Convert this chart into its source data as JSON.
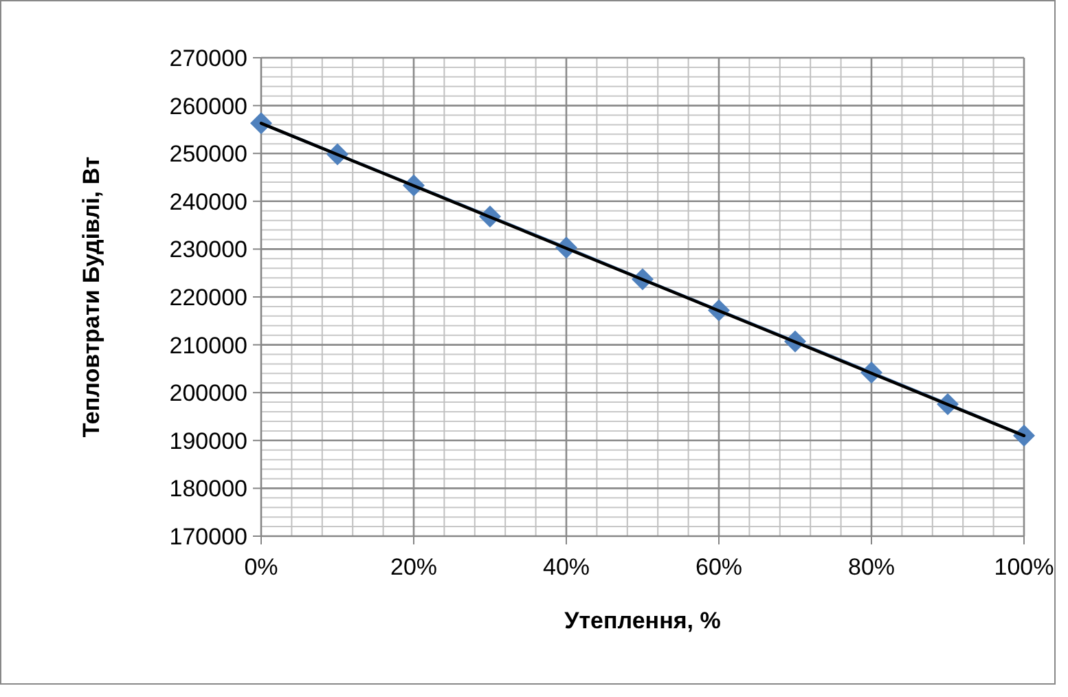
{
  "chart_data": {
    "type": "line",
    "xlabel": "Утеплення, %",
    "ylabel": "Тепловтрати Будівлі, Вт",
    "xlim": [
      0,
      100
    ],
    "ylim": [
      170000,
      270000
    ],
    "xticks": [
      {
        "value": 0,
        "label": "0%"
      },
      {
        "value": 4,
        "label": null
      },
      {
        "value": 8,
        "label": null
      },
      {
        "value": 12,
        "label": null
      },
      {
        "value": 16,
        "label": null
      },
      {
        "value": 20,
        "label": "20%"
      },
      {
        "value": 24,
        "label": null
      },
      {
        "value": 28,
        "label": null
      },
      {
        "value": 32,
        "label": null
      },
      {
        "value": 36,
        "label": null
      },
      {
        "value": 40,
        "label": "40%"
      },
      {
        "value": 44,
        "label": null
      },
      {
        "value": 48,
        "label": null
      },
      {
        "value": 52,
        "label": null
      },
      {
        "value": 56,
        "label": null
      },
      {
        "value": 60,
        "label": "60%"
      },
      {
        "value": 64,
        "label": null
      },
      {
        "value": 68,
        "label": null
      },
      {
        "value": 72,
        "label": null
      },
      {
        "value": 76,
        "label": null
      },
      {
        "value": 80,
        "label": "80%"
      },
      {
        "value": 84,
        "label": null
      },
      {
        "value": 88,
        "label": null
      },
      {
        "value": 92,
        "label": null
      },
      {
        "value": 96,
        "label": null
      },
      {
        "value": 100,
        "label": "100%"
      }
    ],
    "yticks": [
      170000,
      180000,
      190000,
      200000,
      210000,
      220000,
      230000,
      240000,
      250000,
      260000,
      270000
    ],
    "grid": true,
    "series": [
      {
        "color": "#4f81bd",
        "marker": "diamond",
        "line_style": "solid",
        "x": [
          0,
          10,
          20,
          30,
          40,
          50,
          60,
          70,
          80,
          90,
          100
        ],
        "values": [
          256300,
          249800,
          243300,
          236800,
          230300,
          223700,
          217200,
          210700,
          204200,
          197600,
          191000
        ]
      },
      {
        "color": "#000000",
        "marker": "none",
        "line_style": "solid",
        "x": [
          0,
          100
        ],
        "values": [
          256300,
          191000
        ]
      }
    ]
  }
}
